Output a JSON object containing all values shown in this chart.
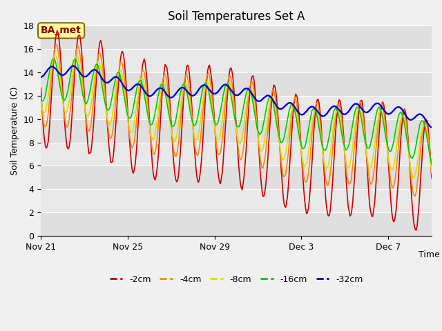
{
  "title": "Soil Temperatures Set A",
  "xlabel": "Time",
  "ylabel": "Soil Temperature (C)",
  "ylim": [
    0,
    18
  ],
  "yticks": [
    0,
    2,
    4,
    6,
    8,
    10,
    12,
    14,
    16,
    18
  ],
  "annotation": "BA_met",
  "bg_color": "#e8e8e8",
  "plot_bg_color": "#e8e8e8",
  "line_colors": {
    "-2cm": "#cc0000",
    "-4cm": "#ff8800",
    "-8cm": "#dddd00",
    "-16cm": "#00cc00",
    "-32cm": "#0000dd"
  },
  "legend_labels": [
    "-2cm",
    "-4cm",
    "-8cm",
    "-16cm",
    "-32cm"
  ],
  "x_tick_labels": [
    "Nov 21",
    "Nov 25",
    "Nov 29",
    "Dec 3",
    "Dec 7"
  ],
  "x_tick_positions": [
    0,
    4,
    8,
    12,
    16
  ]
}
